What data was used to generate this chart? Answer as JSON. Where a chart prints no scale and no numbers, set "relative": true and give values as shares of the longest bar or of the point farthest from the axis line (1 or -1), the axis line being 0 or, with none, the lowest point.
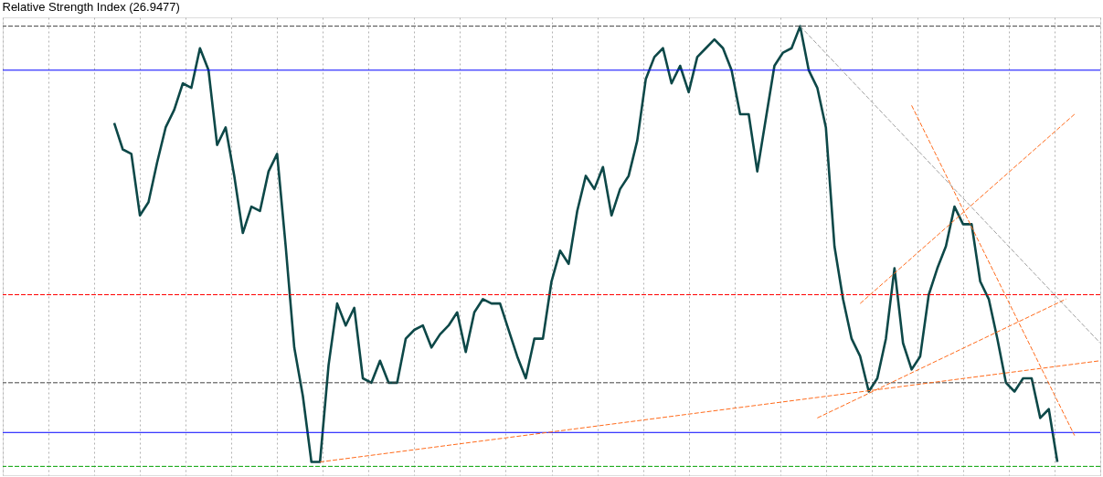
{
  "chart_data": {
    "type": "line",
    "title": "Relative Strength Index (26.9477)",
    "relative": true,
    "grid": "x",
    "marker": "none",
    "categories": [
      null,
      null,
      null,
      null,
      null,
      null,
      null,
      null,
      null,
      null,
      null,
      null,
      null,
      null,
      null,
      null,
      null,
      null,
      null,
      null,
      null,
      null,
      null,
      null,
      null,
      null,
      null,
      null,
      null,
      null,
      null,
      null,
      null,
      null,
      null,
      null,
      null,
      null,
      null,
      null,
      null,
      null,
      null,
      null,
      null,
      null,
      null,
      null,
      null,
      null,
      null,
      null,
      null,
      null,
      null,
      null,
      null,
      null,
      null,
      null,
      null,
      null,
      null,
      null,
      null,
      null,
      null,
      null,
      null,
      null,
      null,
      null,
      null,
      null,
      null,
      null,
      null,
      null,
      null,
      null,
      null,
      null,
      null,
      null,
      null,
      null,
      null,
      null,
      null,
      null,
      null,
      null,
      null,
      null,
      null,
      null,
      null,
      null,
      null,
      null,
      null,
      null,
      null,
      null,
      null,
      null,
      null,
      null,
      null,
      null,
      null,
      null,
      null,
      null,
      null,
      null,
      null,
      null,
      null,
      null,
      null,
      null,
      null,
      null,
      null,
      null,
      null,
      null,
      null
    ],
    "series": [
      {
        "color": "#0d4848",
        "line_style": "solid",
        "values": [
          null,
          null,
          null,
          null,
          null,
          null,
          null,
          null,
          null,
          null,
          null,
          null,
          null,
          0.78,
          0.72,
          0.71,
          0.57,
          0.6,
          0.69,
          0.77,
          0.81,
          0.87,
          0.86,
          0.95,
          0.9,
          0.73,
          0.77,
          0.66,
          0.53,
          0.59,
          0.58,
          0.67,
          0.71,
          0.5,
          0.27,
          0.16,
          0.01,
          0.01,
          0.23,
          0.37,
          0.32,
          0.36,
          0.2,
          0.19,
          0.24,
          0.19,
          0.19,
          0.29,
          0.31,
          0.32,
          0.27,
          0.3,
          0.32,
          0.35,
          0.26,
          0.35,
          0.38,
          0.37,
          0.37,
          0.31,
          0.25,
          0.2,
          0.29,
          0.29,
          0.42,
          0.49,
          0.46,
          0.58,
          0.66,
          0.63,
          0.68,
          0.57,
          0.63,
          0.66,
          0.74,
          0.88,
          0.93,
          0.95,
          0.87,
          0.91,
          0.85,
          0.93,
          0.95,
          0.97,
          0.95,
          0.9,
          0.8,
          0.8,
          0.67,
          0.79,
          0.91,
          0.94,
          0.95,
          1.0,
          0.9,
          0.86,
          0.77,
          0.5,
          0.38,
          0.29,
          0.25,
          0.17,
          0.2,
          0.29,
          0.45,
          0.28,
          0.22,
          0.25,
          0.39,
          0.45,
          0.5,
          0.59,
          0.55,
          0.55,
          0.42,
          0.38,
          0.29,
          0.19,
          0.17,
          0.2,
          0.2,
          0.11,
          0.13,
          0.01,
          null,
          null,
          null,
          null,
          null
        ]
      },
      {
        "color": "#ff6a1a",
        "line_style": "dashed",
        "values": [
          null,
          null,
          null,
          null,
          null,
          null,
          null,
          null,
          null,
          null,
          null,
          null,
          null,
          null,
          null,
          null,
          null,
          null,
          null,
          null,
          null,
          null,
          null,
          null,
          null,
          null,
          null,
          null,
          null,
          null,
          null,
          null,
          null,
          null,
          null,
          null,
          null,
          0.01,
          null,
          null,
          null,
          null,
          null,
          null,
          null,
          null,
          null,
          null,
          null,
          null,
          null,
          null,
          null,
          null,
          null,
          null,
          null,
          null,
          null,
          null,
          null,
          null,
          null,
          null,
          null,
          null,
          null,
          null,
          null,
          null,
          null,
          null,
          null,
          null,
          null,
          null,
          null,
          null,
          null,
          null,
          null,
          null,
          null,
          null,
          null,
          null,
          null,
          null,
          null,
          null,
          null,
          null,
          null,
          null,
          null,
          null,
          null,
          null,
          null,
          null,
          null,
          null,
          null,
          null,
          null,
          null,
          null,
          null,
          null,
          null,
          null,
          null,
          null,
          null,
          null,
          null,
          null,
          null,
          null,
          null,
          null,
          null,
          null,
          null,
          null,
          null,
          null,
          null,
          0.24
        ]
      },
      {
        "color": "#ff6a1a",
        "line_style": "dashed",
        "values": [
          null,
          null,
          null,
          null,
          null,
          null,
          null,
          null,
          null,
          null,
          null,
          null,
          null,
          null,
          null,
          null,
          null,
          null,
          null,
          null,
          null,
          null,
          null,
          null,
          null,
          null,
          null,
          null,
          null,
          null,
          null,
          null,
          null,
          null,
          null,
          null,
          null,
          null,
          null,
          null,
          null,
          null,
          null,
          null,
          null,
          null,
          null,
          null,
          null,
          null,
          null,
          null,
          null,
          null,
          null,
          null,
          null,
          null,
          null,
          null,
          null,
          null,
          null,
          null,
          null,
          null,
          null,
          null,
          null,
          null,
          null,
          null,
          null,
          null,
          null,
          null,
          null,
          null,
          null,
          null,
          null,
          null,
          null,
          null,
          null,
          null,
          null,
          null,
          null,
          null,
          null,
          null,
          null,
          null,
          null,
          0.11,
          null,
          null,
          null,
          null,
          null,
          null,
          null,
          null,
          null,
          null,
          null,
          null,
          null,
          null,
          null,
          null,
          null,
          null,
          null,
          null,
          null,
          null,
          null,
          null,
          null,
          null,
          null,
          null,
          0.38,
          null,
          null,
          null,
          null
        ]
      },
      {
        "color": "#ff6a1a",
        "line_style": "dashed",
        "values": [
          null,
          null,
          null,
          null,
          null,
          null,
          null,
          null,
          null,
          null,
          null,
          null,
          null,
          null,
          null,
          null,
          null,
          null,
          null,
          null,
          null,
          null,
          null,
          null,
          null,
          null,
          null,
          null,
          null,
          null,
          null,
          null,
          null,
          null,
          null,
          null,
          null,
          null,
          null,
          null,
          null,
          null,
          null,
          null,
          null,
          null,
          null,
          null,
          null,
          null,
          null,
          null,
          null,
          null,
          null,
          null,
          null,
          null,
          null,
          null,
          null,
          null,
          null,
          null,
          null,
          null,
          null,
          null,
          null,
          null,
          null,
          null,
          null,
          null,
          null,
          null,
          null,
          null,
          null,
          null,
          null,
          null,
          null,
          null,
          null,
          null,
          null,
          null,
          null,
          null,
          null,
          null,
          null,
          null,
          null,
          null,
          null,
          null,
          null,
          null,
          0.37,
          null,
          null,
          null,
          null,
          null,
          null,
          null,
          null,
          null,
          null,
          null,
          null,
          null,
          null,
          null,
          null,
          null,
          null,
          null,
          null,
          null,
          null,
          null,
          null,
          0.8,
          null,
          null,
          null
        ]
      },
      {
        "color": "#ff6a1a",
        "line_style": "dashed",
        "values": [
          null,
          null,
          null,
          null,
          null,
          null,
          null,
          null,
          null,
          null,
          null,
          null,
          null,
          null,
          null,
          null,
          null,
          null,
          null,
          null,
          null,
          null,
          null,
          null,
          null,
          null,
          null,
          null,
          null,
          null,
          null,
          null,
          null,
          null,
          null,
          null,
          null,
          null,
          null,
          null,
          null,
          null,
          null,
          null,
          null,
          null,
          null,
          null,
          null,
          null,
          null,
          null,
          null,
          null,
          null,
          null,
          null,
          null,
          null,
          null,
          null,
          null,
          null,
          null,
          null,
          null,
          null,
          null,
          null,
          null,
          null,
          null,
          null,
          null,
          null,
          null,
          null,
          null,
          null,
          null,
          null,
          null,
          null,
          null,
          null,
          null,
          null,
          null,
          null,
          null,
          null,
          null,
          null,
          null,
          null,
          null,
          null,
          null,
          null,
          null,
          null,
          null,
          null,
          null,
          null,
          null,
          0.82,
          null,
          null,
          null,
          null,
          null,
          null,
          null,
          null,
          null,
          null,
          null,
          null,
          null,
          null,
          null,
          null,
          null,
          null,
          0.07,
          null,
          null,
          null
        ]
      },
      {
        "color": "#a0a0a0",
        "line_style": "dashed",
        "values": [
          null,
          null,
          null,
          null,
          null,
          null,
          null,
          null,
          null,
          null,
          null,
          null,
          null,
          null,
          null,
          null,
          null,
          null,
          null,
          null,
          null,
          null,
          null,
          null,
          null,
          null,
          null,
          null,
          null,
          null,
          null,
          null,
          null,
          null,
          null,
          null,
          null,
          null,
          null,
          null,
          null,
          null,
          null,
          null,
          null,
          null,
          null,
          null,
          null,
          null,
          null,
          null,
          null,
          null,
          null,
          null,
          null,
          null,
          null,
          null,
          null,
          null,
          null,
          null,
          null,
          null,
          null,
          null,
          null,
          null,
          null,
          null,
          null,
          null,
          null,
          null,
          null,
          null,
          null,
          null,
          null,
          null,
          null,
          null,
          null,
          null,
          null,
          null,
          null,
          null,
          null,
          null,
          null,
          1.0,
          null,
          null,
          null,
          null,
          null,
          null,
          null,
          null,
          null,
          null,
          null,
          null,
          null,
          null,
          null,
          null,
          null,
          null,
          null,
          null,
          null,
          null,
          null,
          null,
          null,
          null,
          null,
          null,
          null,
          null,
          null,
          null,
          null,
          null,
          0.28
        ]
      }
    ],
    "ref_lines": [
      {
        "axis": "y",
        "value": 1.0,
        "color": "#404040",
        "line_style": "dashed"
      },
      {
        "axis": "y",
        "value": 0.9,
        "color": "#0000ff",
        "line_style": "solid"
      },
      {
        "axis": "y",
        "value": 0.39,
        "color": "#ff0000",
        "line_style": "dashed"
      },
      {
        "axis": "y",
        "value": 0.19,
        "color": "#404040",
        "line_style": "dashed"
      },
      {
        "axis": "y",
        "value": 0.077,
        "color": "#0000ff",
        "line_style": "solid"
      },
      {
        "axis": "y",
        "value": 0,
        "color": "#00a000",
        "line_style": "dashed"
      }
    ]
  }
}
